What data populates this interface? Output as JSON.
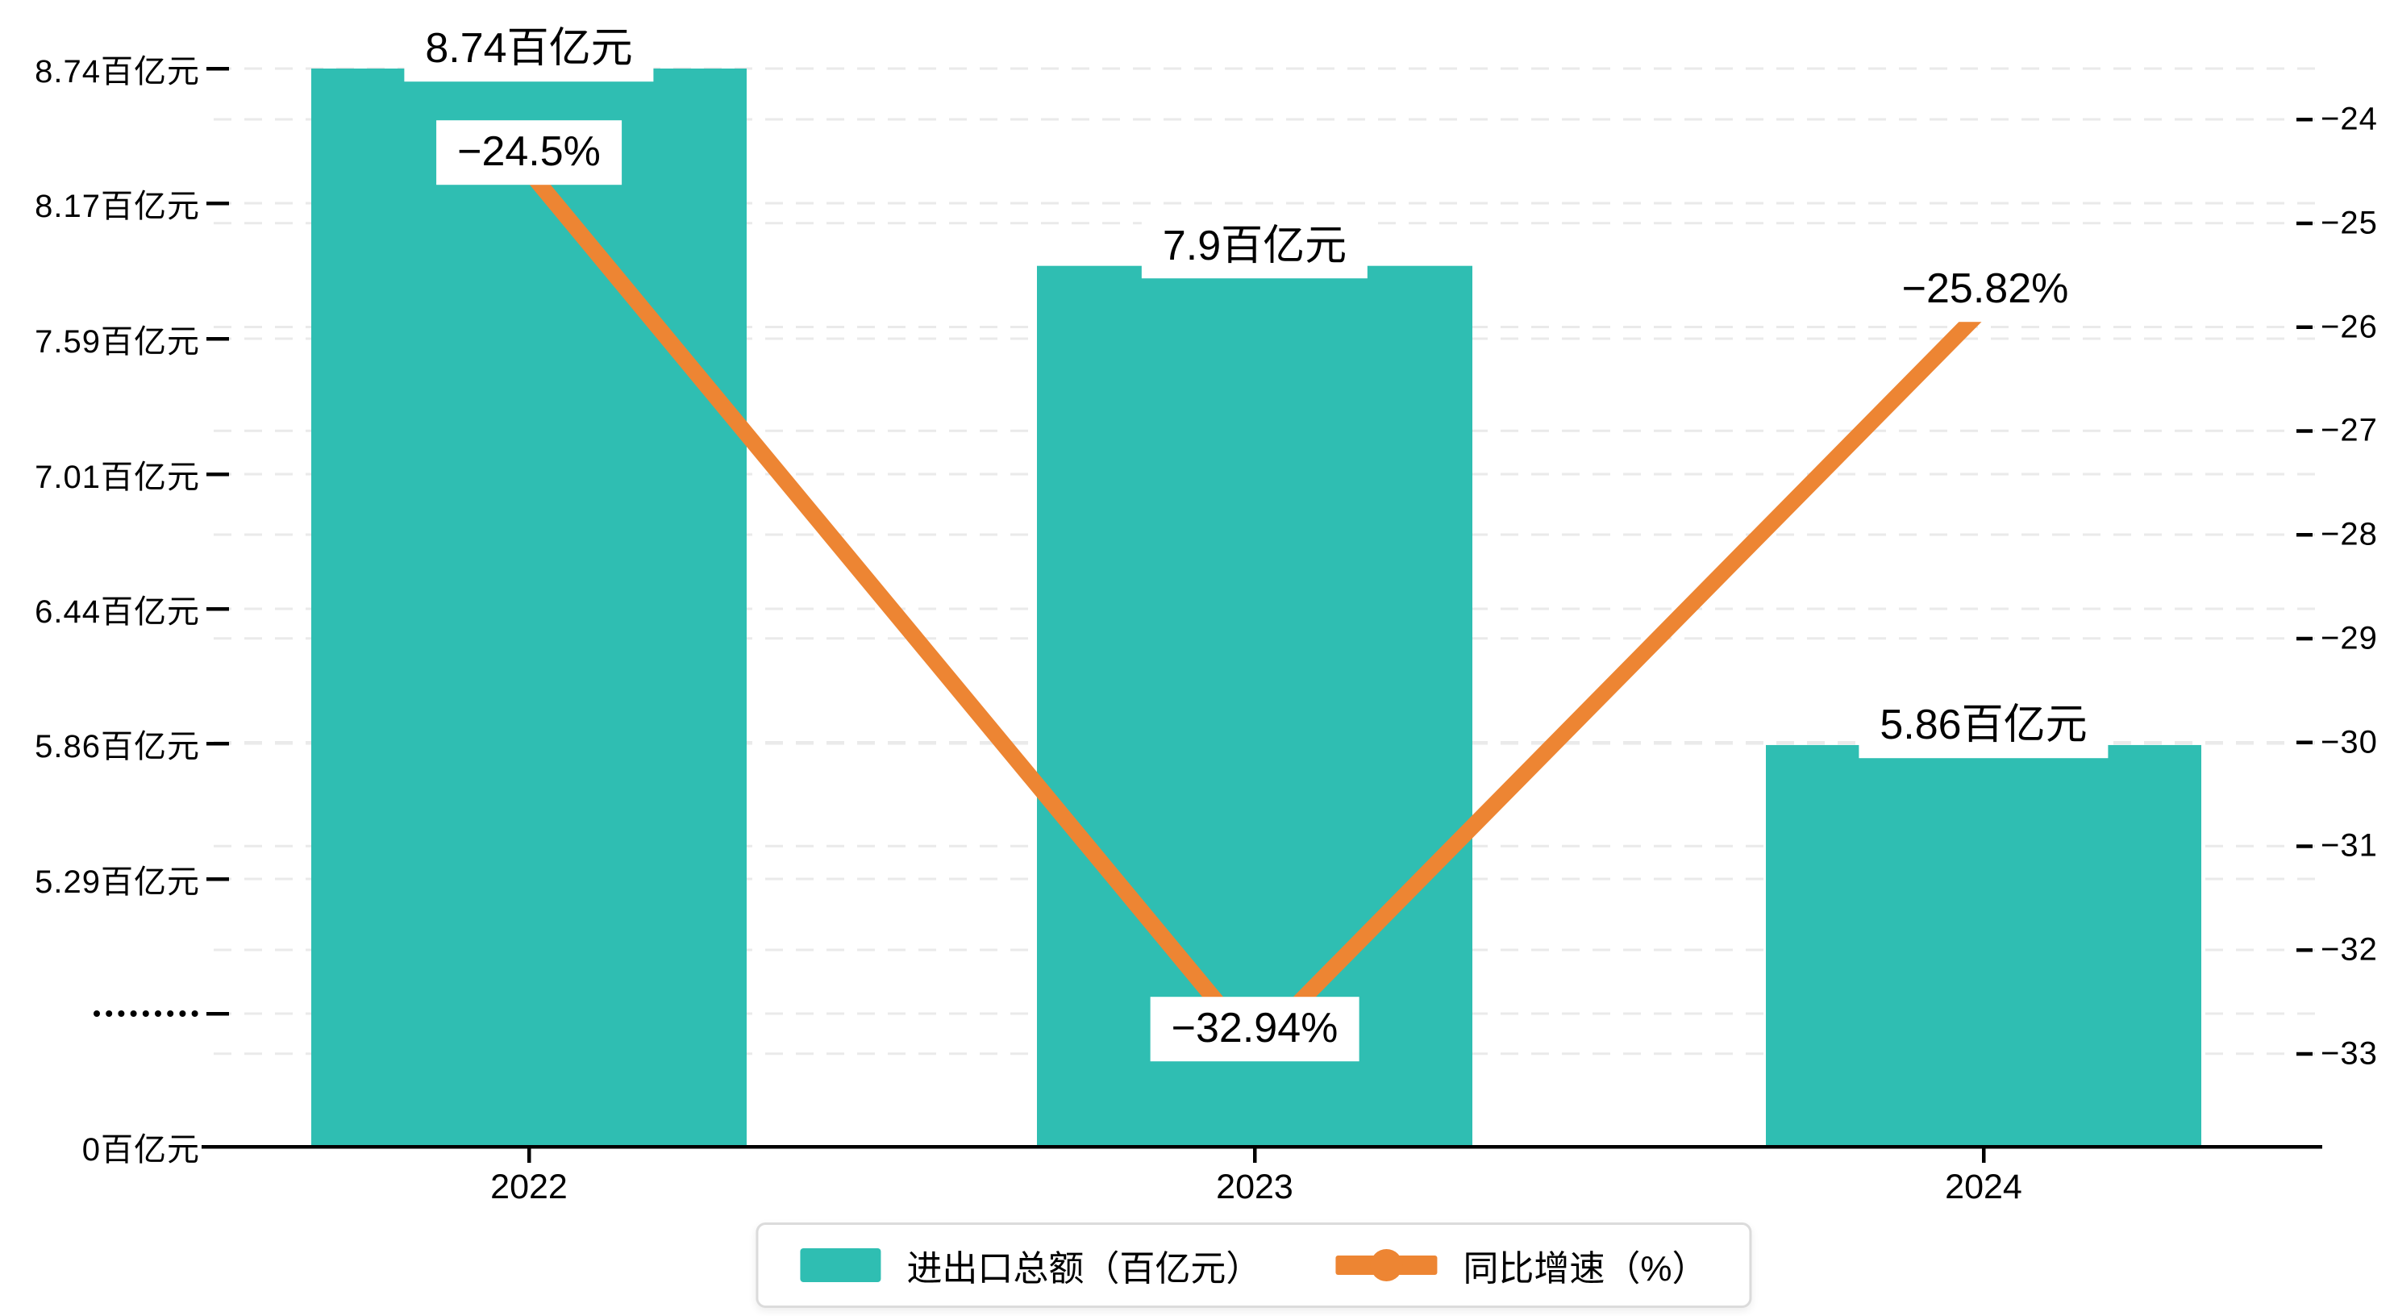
{
  "colors": {
    "bar": "#2FBEB2",
    "line": "#ED8533",
    "grid": "#EAEAEA",
    "axis": "#000000",
    "text": "#000000",
    "label_background": "#FFFFFF",
    "legend_border": "#DBDBDB"
  },
  "chart_data": {
    "type": "bar",
    "subtype": "bar-and-line-combo",
    "categories": [
      "2022",
      "2023",
      "2024"
    ],
    "series": [
      {
        "name": "进出口总额（百亿元）",
        "type": "bar",
        "axis": "left",
        "values": [
          8.74,
          7.9,
          5.86
        ],
        "data_labels": [
          "8.74百亿元",
          "7.9百亿元",
          "5.86百亿元"
        ],
        "color": "#2FBEB2"
      },
      {
        "name": "同比增速（%）",
        "type": "line",
        "axis": "right",
        "values": [
          -24.5,
          -32.94,
          -25.82
        ],
        "data_labels": [
          "−24.5%",
          "−32.94%",
          "−25.82%"
        ],
        "color": "#ED8533"
      }
    ],
    "left_axis": {
      "tick_labels": [
        "8.74百亿元",
        "8.17百亿元",
        "7.59百亿元",
        "7.01百亿元",
        "6.44百亿元",
        "5.86百亿元",
        "5.29百亿元",
        "•••••••••",
        "0百亿元"
      ],
      "tick_values": [
        8.74,
        8.17,
        7.59,
        7.01,
        6.44,
        5.86,
        5.29,
        null,
        0
      ],
      "broken_axis": true,
      "unit": "百亿元"
    },
    "right_axis": {
      "tick_labels": [
        "−24",
        "−25",
        "−26",
        "−27",
        "−28",
        "−29",
        "−30",
        "−31",
        "−32",
        "−33"
      ],
      "tick_values": [
        -24,
        -25,
        -26,
        -27,
        -28,
        -29,
        -30,
        -31,
        -32,
        -33
      ],
      "unit": "%"
    },
    "grid": "dashed-horizontal",
    "legend_position": "bottom-center"
  },
  "legend": {
    "items": [
      {
        "label": "进出口总额（百亿元）",
        "marker": "bar-swatch"
      },
      {
        "label": "同比增速（%）",
        "marker": "line-dot"
      }
    ]
  }
}
